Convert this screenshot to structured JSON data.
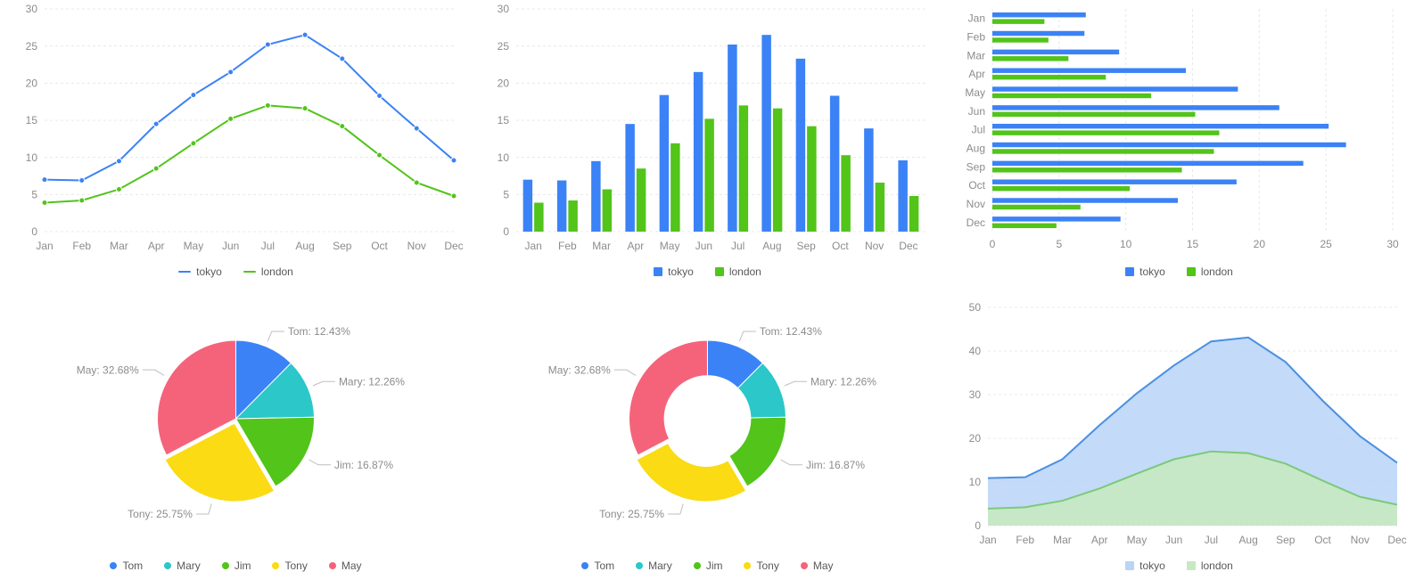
{
  "palette": {
    "blue": "#3b82f6",
    "green": "#52c41a",
    "green2": "#52c41a",
    "teal": "#2bc7c9",
    "yellow": "#fadb14",
    "pink": "#f5637b",
    "areaBlueFill": "#b9d4f7",
    "areaBlueStroke": "#4a90e2",
    "areaGreenFill": "#c7e9c0",
    "areaGreenStroke": "#7cc97c",
    "grid": "#e8e8e8",
    "axis": "#bfbfbf",
    "text": "#8c8c8c"
  },
  "months": [
    "Jan",
    "Feb",
    "Mar",
    "Apr",
    "May",
    "Jun",
    "Jul",
    "Aug",
    "Sep",
    "Oct",
    "Nov",
    "Dec"
  ],
  "temps": {
    "type": "line/bar",
    "series": {
      "tokyo": [
        7.0,
        6.9,
        9.5,
        14.5,
        18.4,
        21.5,
        25.2,
        26.5,
        23.3,
        18.3,
        13.9,
        9.6
      ],
      "london": [
        3.9,
        4.2,
        5.7,
        8.5,
        11.9,
        15.2,
        17.0,
        16.6,
        14.2,
        10.3,
        6.6,
        4.8
      ]
    },
    "ylim": [
      0,
      30
    ],
    "ytick_step": 5,
    "hbar_xlim": [
      0,
      30
    ],
    "hbar_xtick_step": 5,
    "legend": [
      "tokyo",
      "london"
    ],
    "marker_radius": 3,
    "line_width": 2,
    "bar_group_width": 0.6
  },
  "pie": {
    "type": "pie/donut",
    "slices": [
      {
        "name": "Tom",
        "value": 12.43,
        "color": "#3b82f6"
      },
      {
        "name": "Mary",
        "value": 12.26,
        "color": "#2bc7c9"
      },
      {
        "name": "Jim",
        "value": 16.87,
        "color": "#52c41a"
      },
      {
        "name": "Tony",
        "value": 25.75,
        "color": "#fadb14"
      },
      {
        "name": "May",
        "value": 32.68,
        "color": "#f5637b"
      }
    ],
    "tony_offset": 0.06,
    "donut_inner_ratio": 0.55,
    "label_format": "{name}: {value}%",
    "legend": [
      "Tom",
      "Mary",
      "Jim",
      "Tony",
      "May"
    ]
  },
  "area": {
    "type": "stacked-area",
    "series": {
      "london": [
        3.9,
        4.2,
        5.7,
        8.5,
        11.9,
        15.2,
        17.0,
        16.6,
        14.2,
        10.3,
        6.6,
        4.8
      ],
      "tokyo_plus": [
        10.9,
        11.1,
        15.2,
        23.0,
        30.3,
        36.7,
        42.2,
        43.1,
        37.5,
        28.6,
        20.5,
        14.4
      ]
    },
    "ylim": [
      0,
      50
    ],
    "ytick_step": 10,
    "legend": [
      "tokyo",
      "london"
    ]
  },
  "typography": {
    "axis_fontsize": 12,
    "label_fontsize": 12,
    "legend_fontsize": 12
  },
  "background_color": "#ffffff"
}
